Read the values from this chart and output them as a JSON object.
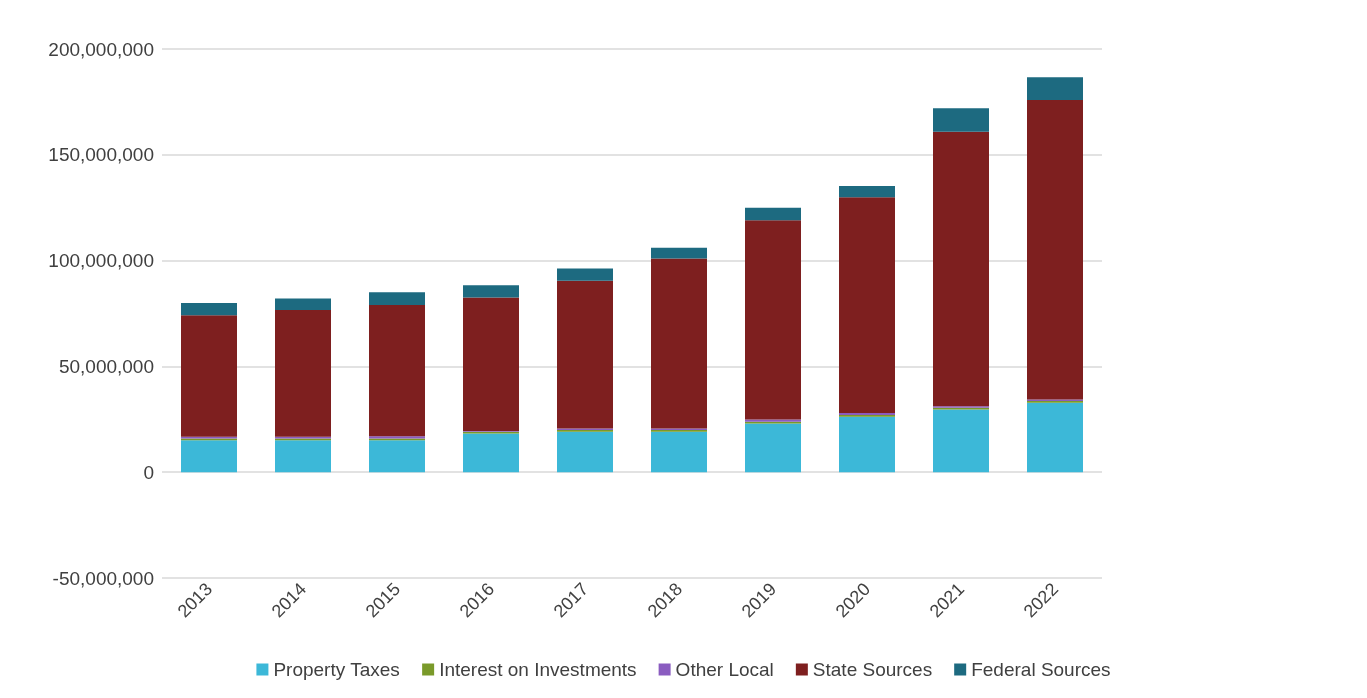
{
  "chart_data": {
    "type": "bar",
    "stacked": true,
    "categories": [
      "2013",
      "2014",
      "2015",
      "2016",
      "2017",
      "2018",
      "2019",
      "2020",
      "2021",
      "2022"
    ],
    "series": [
      {
        "name": "Property Taxes",
        "color": "#3cb8d8",
        "values": [
          15100000,
          15100000,
          15100000,
          18300000,
          19100000,
          19100000,
          23000000,
          26200000,
          29600000,
          32800000
        ]
      },
      {
        "name": "Interest on Investments",
        "color": "#7a9a2a",
        "values": [
          800000,
          800000,
          800000,
          800000,
          800000,
          800000,
          800000,
          800000,
          800000,
          800000
        ]
      },
      {
        "name": "Other Local",
        "color": "#8a5cc0",
        "values": [
          800000,
          800000,
          1100000,
          400000,
          700000,
          700000,
          1100000,
          1000000,
          800000,
          800000
        ]
      },
      {
        "name": "State Sources",
        "color": "#7e1f1f",
        "values": [
          57500000,
          59900000,
          62000000,
          63100000,
          69900000,
          80400000,
          94200000,
          101900000,
          129700000,
          141500000
        ]
      },
      {
        "name": "Federal Sources",
        "color": "#1d6a80",
        "values": [
          5800000,
          5500000,
          6000000,
          5800000,
          5800000,
          5100000,
          5900000,
          5300000,
          11100000,
          10700000
        ]
      }
    ],
    "ylim": [
      -50000000,
      200000000
    ],
    "yticks": [
      {
        "value": -50000000,
        "label": "-50,000,000"
      },
      {
        "value": 0,
        "label": "0"
      },
      {
        "value": 50000000,
        "label": "50,000,000"
      },
      {
        "value": 100000000,
        "label": "100,000,000"
      },
      {
        "value": 150000000,
        "label": "150,000,000"
      },
      {
        "value": 200000000,
        "label": "200,000,000"
      }
    ],
    "grid": "y",
    "legend": "bottom"
  }
}
